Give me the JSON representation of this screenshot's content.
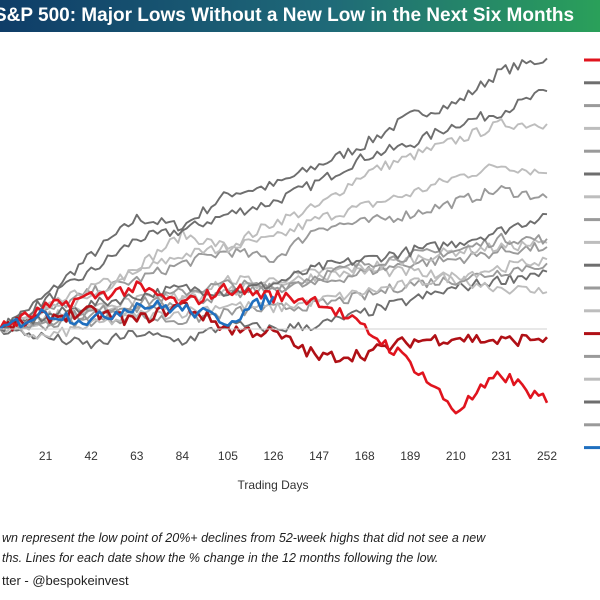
{
  "title": "S&P 500: Major Lows Without a New Low in the Next Six Months",
  "footnote_line1": "wn represent the low point of 20%+ declines from 52-week highs that did not see a new",
  "footnote_line2": "ths. Lines for each date show the % change in the 12 months following the low.",
  "credit": "tter - @bespokeinvest",
  "colors": {
    "gray_dark": "#6e6e6e",
    "gray_mid": "#9a9a9a",
    "gray_light": "#bdbdbd",
    "red": "#e0141e",
    "dark_red": "#b01016",
    "blue": "#1f6fbf"
  },
  "chart_data": {
    "type": "line",
    "title": "S&P 500: Major Lows Without a New Low in the Next Six Months",
    "xlabel": "Trading Days",
    "ylabel": "",
    "x_ticks": [
      21,
      42,
      63,
      84,
      105,
      126,
      147,
      168,
      189,
      210,
      231,
      252
    ],
    "xlim": [
      0,
      252
    ],
    "ylim": [
      -30,
      70
    ],
    "grid": false,
    "legend_position": "right (labels cropped)",
    "series": [
      {
        "color_key": "gray_dark",
        "points": [
          [
            0,
            0
          ],
          [
            21,
            8
          ],
          [
            42,
            18
          ],
          [
            63,
            27
          ],
          [
            84,
            25
          ],
          [
            105,
            33
          ],
          [
            126,
            35
          ],
          [
            147,
            40
          ],
          [
            168,
            45
          ],
          [
            189,
            52
          ],
          [
            210,
            55
          ],
          [
            231,
            63
          ],
          [
            252,
            66
          ]
        ]
      },
      {
        "color_key": "gray_dark",
        "points": [
          [
            0,
            0
          ],
          [
            21,
            7
          ],
          [
            42,
            14
          ],
          [
            63,
            22
          ],
          [
            84,
            24
          ],
          [
            105,
            28
          ],
          [
            126,
            31
          ],
          [
            147,
            36
          ],
          [
            168,
            42
          ],
          [
            189,
            45
          ],
          [
            210,
            50
          ],
          [
            231,
            53
          ],
          [
            252,
            58
          ]
        ]
      },
      {
        "color_key": "gray_light",
        "points": [
          [
            0,
            0
          ],
          [
            21,
            5
          ],
          [
            42,
            10
          ],
          [
            63,
            14
          ],
          [
            84,
            18
          ],
          [
            105,
            20
          ],
          [
            126,
            26
          ],
          [
            147,
            30
          ],
          [
            168,
            38
          ],
          [
            189,
            42
          ],
          [
            210,
            46
          ],
          [
            231,
            50
          ],
          [
            252,
            50
          ]
        ]
      },
      {
        "color_key": "gray_light",
        "points": [
          [
            0,
            0
          ],
          [
            21,
            4
          ],
          [
            42,
            8
          ],
          [
            63,
            15
          ],
          [
            84,
            23
          ],
          [
            105,
            20
          ],
          [
            126,
            22
          ],
          [
            147,
            27
          ],
          [
            168,
            30
          ],
          [
            189,
            33
          ],
          [
            210,
            37
          ],
          [
            231,
            40
          ],
          [
            252,
            38
          ]
        ]
      },
      {
        "color_key": "gray_mid",
        "points": [
          [
            0,
            0
          ],
          [
            21,
            4
          ],
          [
            42,
            9
          ],
          [
            63,
            12
          ],
          [
            84,
            16
          ],
          [
            105,
            19
          ],
          [
            126,
            17
          ],
          [
            147,
            25
          ],
          [
            168,
            26
          ],
          [
            189,
            28
          ],
          [
            210,
            31
          ],
          [
            231,
            34
          ],
          [
            252,
            32
          ]
        ]
      },
      {
        "color_key": "gray_dark",
        "points": [
          [
            0,
            0
          ],
          [
            21,
            3
          ],
          [
            42,
            6
          ],
          [
            63,
            8
          ],
          [
            84,
            10
          ],
          [
            105,
            9
          ],
          [
            126,
            11
          ],
          [
            147,
            15
          ],
          [
            168,
            17
          ],
          [
            189,
            19
          ],
          [
            210,
            21
          ],
          [
            231,
            24
          ],
          [
            252,
            28
          ]
        ]
      },
      {
        "color_key": "gray_mid",
        "points": [
          [
            0,
            0
          ],
          [
            21,
            2
          ],
          [
            42,
            4
          ],
          [
            63,
            6
          ],
          [
            84,
            9
          ],
          [
            105,
            11
          ],
          [
            126,
            10
          ],
          [
            147,
            13
          ],
          [
            168,
            16
          ],
          [
            189,
            18
          ],
          [
            210,
            19
          ],
          [
            231,
            22
          ],
          [
            252,
            22
          ]
        ]
      },
      {
        "color_key": "gray_light",
        "points": [
          [
            0,
            0
          ],
          [
            21,
            3
          ],
          [
            42,
            5
          ],
          [
            63,
            4
          ],
          [
            84,
            7
          ],
          [
            105,
            9
          ],
          [
            126,
            12
          ],
          [
            147,
            14
          ],
          [
            168,
            15
          ],
          [
            189,
            17
          ],
          [
            210,
            19
          ],
          [
            231,
            20
          ],
          [
            252,
            21
          ]
        ]
      },
      {
        "color_key": "gray_mid",
        "points": [
          [
            0,
            0
          ],
          [
            21,
            2
          ],
          [
            42,
            3
          ],
          [
            63,
            5
          ],
          [
            84,
            7
          ],
          [
            105,
            8
          ],
          [
            126,
            10
          ],
          [
            147,
            11
          ],
          [
            168,
            14
          ],
          [
            189,
            16
          ],
          [
            210,
            17
          ],
          [
            231,
            19
          ],
          [
            252,
            20
          ]
        ]
      },
      {
        "color_key": "gray_light",
        "points": [
          [
            0,
            0
          ],
          [
            21,
            -2
          ],
          [
            42,
            1
          ],
          [
            63,
            3
          ],
          [
            84,
            4
          ],
          [
            105,
            6
          ],
          [
            126,
            5
          ],
          [
            147,
            7
          ],
          [
            168,
            9
          ],
          [
            189,
            11
          ],
          [
            210,
            13
          ],
          [
            231,
            15
          ],
          [
            252,
            17
          ]
        ]
      },
      {
        "color_key": "gray_mid",
        "points": [
          [
            0,
            0
          ],
          [
            21,
            1
          ],
          [
            42,
            2
          ],
          [
            63,
            3
          ],
          [
            84,
            2
          ],
          [
            105,
            4
          ],
          [
            126,
            5
          ],
          [
            147,
            6
          ],
          [
            168,
            8
          ],
          [
            189,
            11
          ],
          [
            210,
            12
          ],
          [
            231,
            14
          ],
          [
            252,
            16
          ]
        ]
      },
      {
        "color_key": "gray_light",
        "points": [
          [
            0,
            0
          ],
          [
            21,
            2
          ],
          [
            42,
            5
          ],
          [
            63,
            7
          ],
          [
            84,
            8
          ],
          [
            105,
            12
          ],
          [
            126,
            11
          ],
          [
            147,
            13
          ],
          [
            168,
            14
          ],
          [
            189,
            14
          ],
          [
            210,
            12
          ],
          [
            231,
            10
          ],
          [
            252,
            9
          ]
        ]
      },
      {
        "color_key": "gray_dark",
        "points": [
          [
            0,
            0
          ],
          [
            21,
            -2
          ],
          [
            42,
            -4
          ],
          [
            63,
            -1
          ],
          [
            84,
            -3
          ],
          [
            105,
            1
          ],
          [
            126,
            0
          ],
          [
            147,
            1
          ],
          [
            168,
            4
          ],
          [
            189,
            7
          ],
          [
            210,
            10
          ],
          [
            231,
            12
          ],
          [
            252,
            14
          ]
        ]
      },
      {
        "color_key": "dark_red",
        "points": [
          [
            0,
            0
          ],
          [
            21,
            3
          ],
          [
            42,
            4
          ],
          [
            63,
            2
          ],
          [
            84,
            6
          ],
          [
            105,
            0
          ],
          [
            126,
            -1
          ],
          [
            147,
            -7
          ],
          [
            168,
            -6
          ],
          [
            189,
            -3
          ],
          [
            210,
            -2
          ],
          [
            231,
            -3
          ],
          [
            252,
            -2
          ]
        ]
      },
      {
        "color_key": "red",
        "points": [
          [
            0,
            0
          ],
          [
            21,
            5
          ],
          [
            42,
            8
          ],
          [
            63,
            10
          ],
          [
            84,
            6
          ],
          [
            105,
            10
          ],
          [
            126,
            8
          ],
          [
            147,
            7
          ],
          [
            168,
            0
          ],
          [
            189,
            -8
          ],
          [
            210,
            -20
          ],
          [
            231,
            -11
          ],
          [
            252,
            -18
          ]
        ]
      },
      {
        "color_key": "blue",
        "points": [
          [
            0,
            0
          ],
          [
            21,
            4
          ],
          [
            42,
            2
          ],
          [
            63,
            6
          ],
          [
            84,
            5
          ],
          [
            105,
            2
          ],
          [
            126,
            8
          ]
        ]
      }
    ]
  }
}
